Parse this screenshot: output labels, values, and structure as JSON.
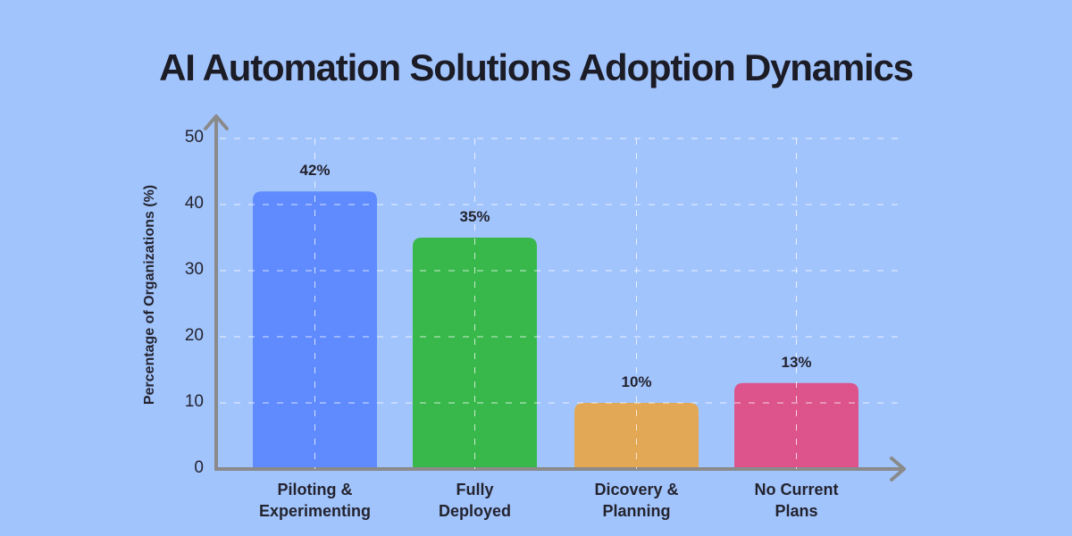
{
  "chart_data": {
    "type": "bar",
    "title": "AI Automation Solutions Adoption Dynamics",
    "xlabel": "",
    "ylabel": "Percentage of Organizations (%)",
    "ylim": [
      0,
      50
    ],
    "yticks": [
      "0",
      "10",
      "20",
      "30",
      "40",
      "50"
    ],
    "grid": true,
    "categories": [
      "Piloting & Experimenting",
      "Fully Deployed",
      "Dicovery & Planning",
      "No Current Plans"
    ],
    "category_lines": [
      [
        "Piloting &",
        "Experimenting"
      ],
      [
        "Fully",
        "Deployed"
      ],
      [
        "Dicovery &",
        "Planning"
      ],
      [
        "No Current",
        "Plans"
      ]
    ],
    "values": [
      42,
      35,
      10,
      13
    ],
    "value_labels": [
      "42%",
      "35%",
      "10%",
      "13%"
    ],
    "colors": [
      "#5f8bff",
      "#38b84a",
      "#e3a855",
      "#dc548b"
    ]
  },
  "style": {
    "background": "#a2c4fd",
    "axis_color": "#8a8a8a",
    "grid_color": "#ffffff"
  }
}
